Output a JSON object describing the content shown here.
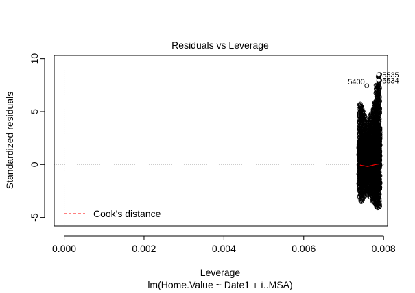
{
  "chart_data": {
    "type": "scatter",
    "title": "Residuals vs Leverage",
    "xlabel": "Leverage",
    "ylabel": "Standardized residuals",
    "subtitle": "lm(Home.Value ~ Date1 + ï..MSA)",
    "xlim": [
      -0.00025,
      0.0081
    ],
    "ylim": [
      -5.8,
      10.3
    ],
    "xticks": [
      "0.000",
      "0.002",
      "0.004",
      "0.006",
      "0.008"
    ],
    "yticks": [
      "-5",
      "0",
      "5",
      "10"
    ],
    "grid": false,
    "reference_lines": {
      "x": 0,
      "y": 0,
      "style": "dotted",
      "color": "#bbbbbb"
    },
    "legend": {
      "placement": "bottom-left",
      "label": "Cook's distance",
      "color": "#ff0000",
      "style": "dashed"
    },
    "labeled_points": [
      {
        "label": "5535",
        "x": 0.00788,
        "y": 8.5
      },
      {
        "label": "5534",
        "x": 0.00788,
        "y": 7.95
      },
      {
        "label": "5400",
        "x": 0.00758,
        "y": 7.45
      }
    ],
    "point_groups": [
      {
        "x": 0.00741,
        "y_min": -3.1,
        "y_max": 5.7,
        "core_min": -1.9,
        "core_max": 2.4
      },
      {
        "x": 0.00745,
        "y_min": -3.5,
        "y_max": 5.5,
        "core_min": -2.0,
        "core_max": 2.6
      },
      {
        "x": 0.0075,
        "y_min": -3.0,
        "y_max": 4.9,
        "core_min": -1.8,
        "core_max": 2.2
      },
      {
        "x": 0.00755,
        "y_min": -2.6,
        "y_max": 3.6,
        "core_min": -1.6,
        "core_max": 1.8
      },
      {
        "x": 0.0076,
        "y_min": -2.9,
        "y_max": 4.3,
        "core_min": -1.7,
        "core_max": 2.0
      },
      {
        "x": 0.00765,
        "y_min": -2.7,
        "y_max": 4.0,
        "core_min": -1.5,
        "core_max": 1.9
      },
      {
        "x": 0.0077,
        "y_min": -3.1,
        "y_max": 4.8,
        "core_min": -1.9,
        "core_max": 2.4
      },
      {
        "x": 0.00775,
        "y_min": -3.5,
        "y_max": 5.2,
        "core_min": -2.0,
        "core_max": 2.6
      },
      {
        "x": 0.00779,
        "y_min": -3.8,
        "y_max": 5.9,
        "core_min": -2.3,
        "core_max": 3.0
      },
      {
        "x": 0.00783,
        "y_min": -4.0,
        "y_max": 7.5,
        "core_min": -2.6,
        "core_max": 3.4
      },
      {
        "x": 0.00788,
        "y_min": -4.1,
        "y_max": 8.5,
        "core_min": -2.6,
        "core_max": 3.6
      }
    ],
    "smooth_line": {
      "color": "#ff0000",
      "x": [
        0.00741,
        0.0075,
        0.0076,
        0.0077,
        0.0078,
        0.00788
      ],
      "y": [
        -0.05,
        -0.12,
        -0.18,
        -0.1,
        0.0,
        0.05
      ]
    },
    "point_color": "#000000"
  }
}
